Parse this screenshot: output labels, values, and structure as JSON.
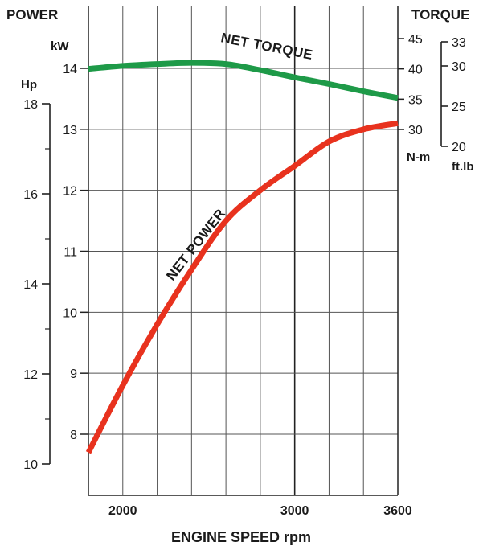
{
  "chart_data": {
    "type": "line",
    "left_title": "POWER",
    "right_title": "TORQUE",
    "xlabel": "ENGINE SPEED rpm",
    "x_range": [
      1800,
      3600
    ],
    "x_ticks": [
      2000,
      3000,
      3600
    ],
    "axes": {
      "kw": {
        "label": "kW",
        "range": [
          7.0,
          14.5
        ],
        "ticks": [
          8,
          9,
          10,
          11,
          12,
          13,
          14
        ]
      },
      "hp": {
        "label": "Hp",
        "ticks": [
          10,
          12,
          14,
          16,
          18
        ]
      },
      "nm": {
        "label": "N-m",
        "ticks": [
          30,
          35,
          40,
          45
        ]
      },
      "ftlb": {
        "label": "ft.lb",
        "ticks": [
          20,
          25,
          30,
          33
        ]
      }
    },
    "series": [
      {
        "name": "NET POWER",
        "color": "#e8321e",
        "axis": "kw",
        "x": [
          1800,
          2000,
          2200,
          2400,
          2600,
          2800,
          3000,
          3200,
          3400,
          3600
        ],
        "y": [
          7.7,
          8.8,
          9.8,
          10.7,
          11.5,
          12.0,
          12.4,
          12.8,
          13.0,
          13.1
        ]
      },
      {
        "name": "NET TORQUE",
        "color": "#1e9a48",
        "axis": "nm",
        "x": [
          1800,
          2000,
          2200,
          2400,
          2600,
          2800,
          3000,
          3200,
          3400,
          3600
        ],
        "y": [
          40.0,
          40.5,
          40.8,
          41.0,
          40.8,
          39.8,
          38.6,
          37.5,
          36.3,
          35.2
        ]
      }
    ]
  }
}
